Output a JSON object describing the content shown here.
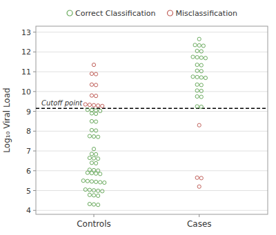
{
  "chart_data": {
    "type": "strip",
    "ylabel": "Log₁₀ Viral Load",
    "categories": [
      "Controls",
      "Cases"
    ],
    "series": [
      {
        "name": "Correct Classification",
        "color": "#6aaa5e",
        "marker": "circle",
        "values": [
          [
            9.08,
            9.06,
            9.04,
            9.02,
            8.9,
            8.88,
            8.5,
            8.48,
            8.05,
            8.03,
            7.75,
            7.73,
            7.71,
            7.1,
            6.85,
            6.83,
            6.65,
            6.63,
            6.61,
            6.4,
            6.38,
            6.05,
            6.03,
            6.01,
            5.9,
            5.88,
            5.86,
            5.84,
            5.5,
            5.48,
            5.46,
            5.44,
            5.42,
            5.4,
            5.05,
            5.03,
            5.01,
            4.99,
            4.97,
            4.78,
            4.76,
            4.74,
            4.32,
            4.3,
            4.28
          ],
          [
            12.65,
            12.35,
            12.33,
            12.31,
            12.05,
            12.03,
            11.75,
            11.73,
            11.71,
            11.69,
            11.35,
            11.33,
            11.05,
            11.03,
            10.75,
            10.73,
            10.71,
            10.69,
            10.35,
            10.33,
            10.05,
            10.03,
            9.75,
            9.73,
            9.25,
            9.23
          ]
        ]
      },
      {
        "name": "Misclassification",
        "color": "#c0605a",
        "marker": "circle",
        "values": [
          [
            11.35,
            10.9,
            10.88,
            10.35,
            10.33,
            9.8,
            9.78,
            9.35,
            9.33,
            9.31,
            9.29,
            9.27
          ],
          [
            8.3,
            5.65,
            5.63,
            5.2
          ]
        ]
      }
    ],
    "annotations": [
      {
        "text": "Cutoff point",
        "y": 9.15,
        "line_style": "dashed"
      }
    ],
    "ylim": [
      3.8,
      13.3
    ],
    "yticks": [
      4,
      5,
      6,
      7,
      8,
      9,
      10,
      11,
      12,
      13
    ],
    "grid": true,
    "legend": "top"
  }
}
